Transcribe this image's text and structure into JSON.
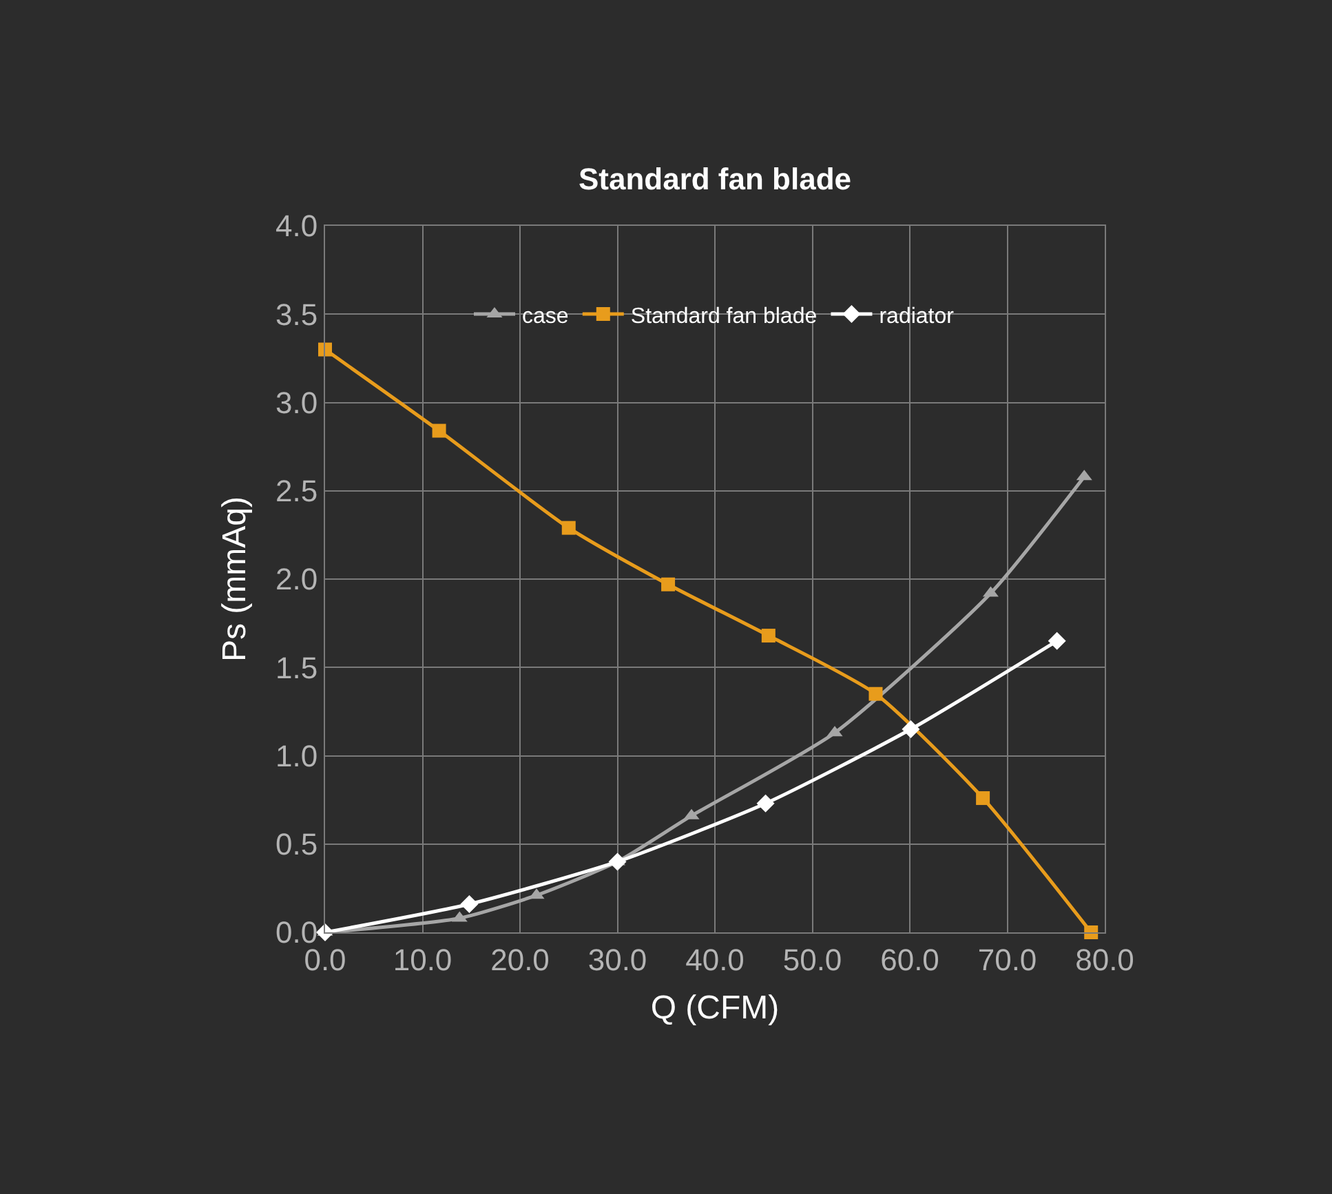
{
  "chart_data": {
    "type": "line",
    "title": "Standard fan blade",
    "xlabel": "Q (CFM)",
    "ylabel": "Ps (mmAq)",
    "xlim": [
      0,
      80
    ],
    "xticks": [
      {
        "value": 0,
        "label": "0.0"
      },
      {
        "value": 10,
        "label": "10.0"
      },
      {
        "value": 20,
        "label": "20.0"
      },
      {
        "value": 30,
        "label": "30.0"
      },
      {
        "value": 40,
        "label": "40.0"
      },
      {
        "value": 50,
        "label": "50.0"
      },
      {
        "value": 60,
        "label": "60.0"
      },
      {
        "value": 70,
        "label": "70.0"
      },
      {
        "value": 80,
        "label": "80.0"
      }
    ],
    "ylim": [
      0,
      4
    ],
    "yticks": [
      {
        "value": 0,
        "label": "0.0"
      },
      0.5,
      {
        "value": 1,
        "label": "1.0"
      },
      1.5,
      {
        "value": 2,
        "label": "2.0"
      },
      2.5,
      {
        "value": 3,
        "label": "3.0"
      },
      3.5,
      {
        "value": 4,
        "label": "4.0"
      }
    ],
    "grid": true,
    "legend": "top",
    "line_style": "solid",
    "series": [
      {
        "name": "case",
        "color": "#a6a6a6",
        "marker": "triangle",
        "x": [
          0,
          13.8,
          21.7,
          30.0,
          37.6,
          52.3,
          68.3,
          77.9
        ],
        "values": [
          0,
          0.08,
          0.21,
          0.4,
          0.66,
          1.13,
          1.92,
          2.58
        ]
      },
      {
        "name": "Standard fan blade",
        "color": "#e89c1c",
        "marker": "square",
        "x": [
          0,
          11.7,
          25.0,
          35.2,
          45.5,
          56.5,
          67.5,
          78.6
        ],
        "values": [
          3.3,
          2.84,
          2.29,
          1.97,
          1.68,
          1.35,
          0.76,
          0
        ]
      },
      {
        "name": "radiator",
        "color": "#ffffff",
        "marker": "diamond",
        "x": [
          0,
          14.8,
          30.0,
          45.2,
          60.1,
          75.1
        ],
        "values": [
          0,
          0.16,
          0.4,
          0.73,
          1.15,
          1.65
        ]
      }
    ]
  }
}
